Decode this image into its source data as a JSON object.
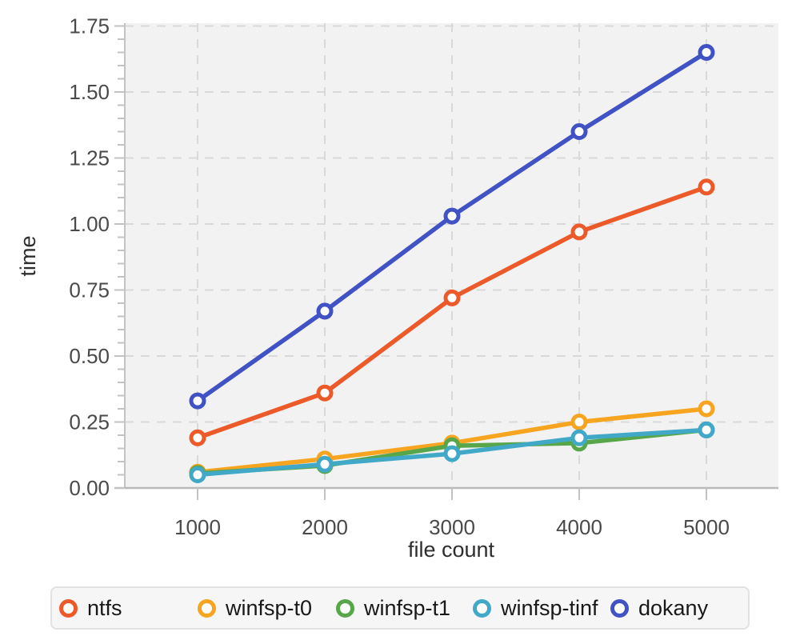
{
  "chart_data": {
    "type": "line",
    "title": "",
    "xlabel": "file count",
    "ylabel": "time",
    "x": [
      1000,
      2000,
      3000,
      4000,
      5000
    ],
    "x_tick_labels": [
      "1000",
      "2000",
      "3000",
      "4000",
      "5000"
    ],
    "y_ticks": [
      0,
      0.25,
      0.5,
      0.75,
      1.0,
      1.25,
      1.5,
      1.75
    ],
    "y_tick_labels": [
      "0.00",
      "0.25",
      "0.50",
      "0.75",
      "1.00",
      "1.25",
      "1.50",
      "1.75"
    ],
    "ylim": [
      0,
      1.75
    ],
    "y_minor_tick_step": 0.05,
    "grid": "major-dashed",
    "legend_position": "bottom",
    "marker": "open-circle",
    "colors": {
      "plot_background": "#f2f2f2",
      "gridline": "#d9d9d9",
      "axis_line": "#c3c3c3",
      "tick_text": "#4a4a4a"
    },
    "series": [
      {
        "name": "ntfs",
        "color": "#ed5a29",
        "values": [
          0.19,
          0.36,
          0.72,
          0.97,
          1.14
        ]
      },
      {
        "name": "winfsp-t0",
        "color": "#f7a521",
        "values": [
          0.06,
          0.11,
          0.17,
          0.25,
          0.3
        ]
      },
      {
        "name": "winfsp-t1",
        "color": "#57a74a",
        "values": [
          0.055,
          0.085,
          0.16,
          0.17,
          0.22
        ]
      },
      {
        "name": "winfsp-tinf",
        "color": "#41a8c7",
        "values": [
          0.05,
          0.09,
          0.13,
          0.19,
          0.22
        ]
      },
      {
        "name": "dokany",
        "color": "#4152c5",
        "values": [
          0.33,
          0.67,
          1.03,
          1.35,
          1.65
        ]
      }
    ]
  }
}
